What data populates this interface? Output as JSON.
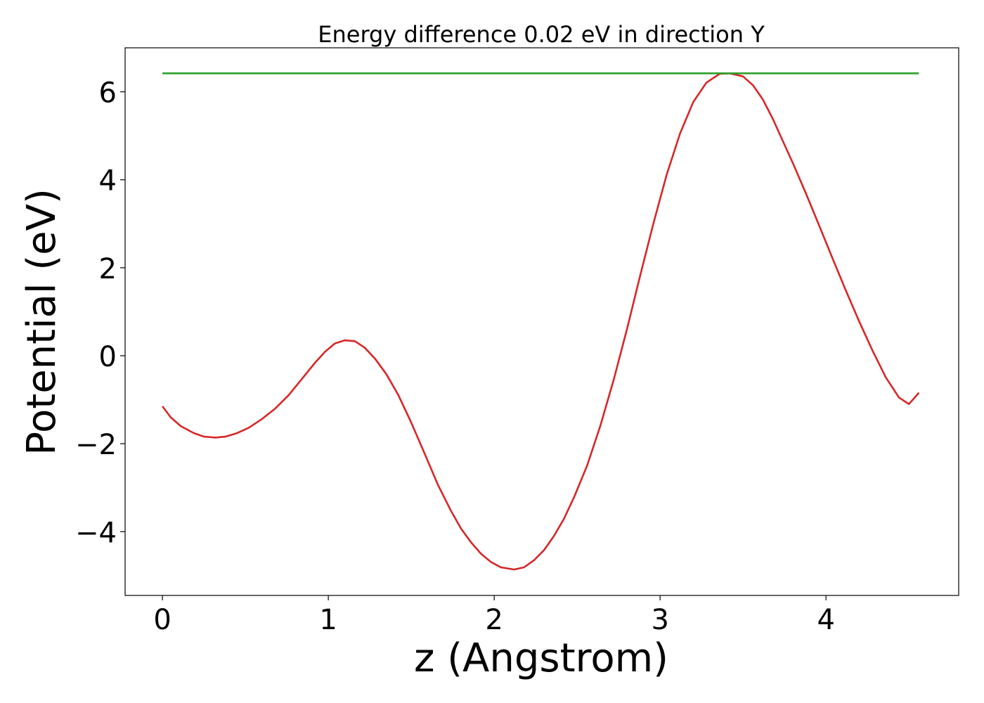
{
  "chart_data": {
    "type": "line",
    "title": "Energy difference 0.02 eV in direction Y",
    "xlabel": "z (Angstrom)",
    "ylabel": "Potential (eV)",
    "xlim": [
      -0.225,
      4.8
    ],
    "ylim": [
      -5.45,
      7.0
    ],
    "x_ticks": [
      0,
      1,
      2,
      3,
      4
    ],
    "x_tick_labels": [
      "0",
      "1",
      "2",
      "3",
      "4"
    ],
    "y_ticks": [
      -4,
      -2,
      0,
      2,
      4,
      6
    ],
    "y_tick_labels": [
      "−4",
      "−2",
      "0",
      "2",
      "4",
      "6"
    ],
    "grid": false,
    "series": [
      {
        "color": "#d62728",
        "x": [
          0.0,
          0.05,
          0.11,
          0.19,
          0.25,
          0.32,
          0.38,
          0.45,
          0.52,
          0.6,
          0.68,
          0.76,
          0.84,
          0.92,
          0.98,
          1.04,
          1.1,
          1.16,
          1.22,
          1.28,
          1.35,
          1.42,
          1.5,
          1.58,
          1.66,
          1.74,
          1.8,
          1.86,
          1.92,
          1.98,
          2.04,
          2.12,
          2.18,
          2.24,
          2.3,
          2.36,
          2.42,
          2.48,
          2.56,
          2.64,
          2.72,
          2.8,
          2.88,
          2.96,
          3.04,
          3.12,
          3.2,
          3.28,
          3.36,
          3.42,
          3.5,
          3.56,
          3.62,
          3.68,
          3.74,
          3.8,
          3.88,
          3.96,
          4.04,
          4.12,
          4.2,
          4.28,
          4.36,
          4.44,
          4.5,
          4.56
        ],
        "values": [
          -1.15,
          -1.4,
          -1.6,
          -1.76,
          -1.84,
          -1.86,
          -1.84,
          -1.76,
          -1.64,
          -1.44,
          -1.2,
          -0.9,
          -0.53,
          -0.16,
          0.09,
          0.28,
          0.35,
          0.33,
          0.18,
          -0.06,
          -0.42,
          -0.88,
          -1.52,
          -2.22,
          -2.93,
          -3.53,
          -3.93,
          -4.24,
          -4.5,
          -4.69,
          -4.81,
          -4.86,
          -4.81,
          -4.65,
          -4.42,
          -4.1,
          -3.71,
          -3.23,
          -2.5,
          -1.59,
          -0.55,
          0.6,
          1.82,
          3.01,
          4.12,
          5.05,
          5.77,
          6.21,
          6.41,
          6.42,
          6.35,
          6.15,
          5.82,
          5.38,
          4.88,
          4.38,
          3.68,
          2.95,
          2.21,
          1.48,
          0.78,
          0.12,
          -0.49,
          -0.95,
          -1.1,
          -0.84
        ]
      },
      {
        "color": "#2ca02c",
        "x": [
          0.0,
          4.56
        ],
        "values": [
          6.42,
          6.42
        ]
      }
    ]
  }
}
